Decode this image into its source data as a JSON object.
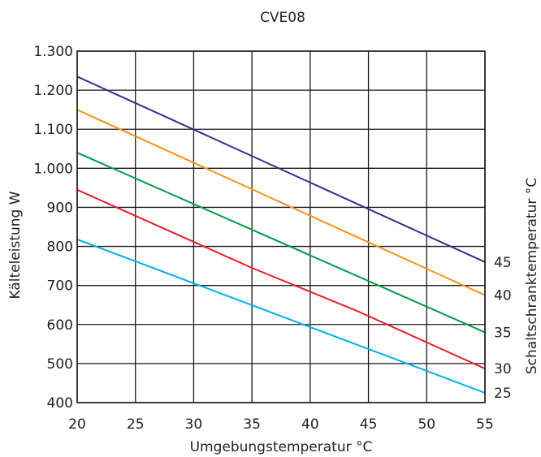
{
  "chart_data": {
    "type": "line",
    "title": "CVE08",
    "xlabel": "Umgebungstemperatur °C",
    "ylabel": "Kälteleistung W",
    "y2label": "Schaltschranktemperatur °C",
    "xlim": [
      20,
      55
    ],
    "ylim": [
      400,
      1300
    ],
    "x_ticks": [
      "20",
      "25",
      "30",
      "35",
      "40",
      "45",
      "50",
      "55"
    ],
    "y_ticks": [
      "400",
      "500",
      "600",
      "700",
      "800",
      "900",
      "1.000",
      "1.100",
      "1.200",
      "1.300"
    ],
    "grid": true,
    "series": [
      {
        "name": "45",
        "color": "#2e3192",
        "points": [
          [
            20,
            1235
          ],
          [
            55,
            760
          ]
        ]
      },
      {
        "name": "40",
        "color": "#f7941d",
        "points": [
          [
            20,
            1150
          ],
          [
            55,
            675
          ]
        ]
      },
      {
        "name": "35",
        "color": "#009b48",
        "points": [
          [
            20,
            1040
          ],
          [
            55,
            580
          ]
        ]
      },
      {
        "name": "30",
        "color": "#ed1c24",
        "points": [
          [
            20,
            945
          ],
          [
            35,
            745
          ],
          [
            44,
            635
          ],
          [
            55,
            487
          ]
        ]
      },
      {
        "name": "25",
        "color": "#00aeef",
        "points": [
          [
            20,
            818
          ],
          [
            55,
            425
          ]
        ]
      }
    ]
  }
}
